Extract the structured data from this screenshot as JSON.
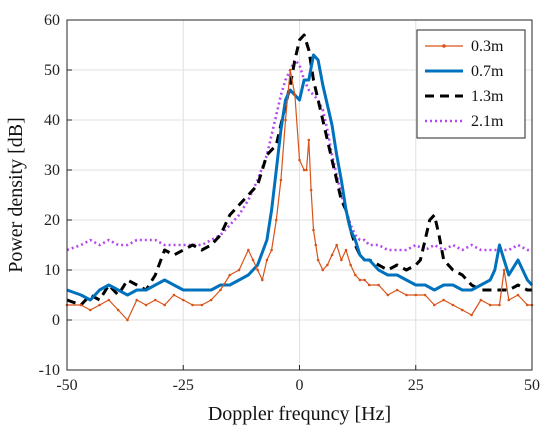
{
  "chart_data": {
    "type": "line",
    "title": "",
    "xlabel": "Doppler frequncy [Hz]",
    "ylabel": "Power density [dB]",
    "xlim": [
      -50,
      50
    ],
    "ylim": [
      -10,
      60
    ],
    "xticks": [
      -50,
      -25,
      0,
      25,
      50
    ],
    "yticks": [
      -10,
      0,
      10,
      20,
      30,
      40,
      50,
      60
    ],
    "grid": true,
    "legend_position": "top-right",
    "series": [
      {
        "name": "0.3m",
        "color": "#D95319",
        "style": "solid-dotted-markers",
        "x": [
          -50,
          -47,
          -45,
          -43,
          -41,
          -39,
          -37,
          -35,
          -33,
          -31,
          -29,
          -27,
          -25,
          -23,
          -21,
          -19,
          -17,
          -15,
          -13,
          -11,
          -10,
          -9,
          -8,
          -7,
          -6,
          -5,
          -4,
          -3,
          -2,
          -1,
          0,
          1,
          1.5,
          2,
          2.5,
          3,
          3.5,
          4,
          5,
          6,
          7,
          8,
          9,
          10,
          11,
          12,
          13,
          14,
          15,
          17,
          19,
          21,
          23,
          25,
          27,
          29,
          31,
          33,
          35,
          37,
          39,
          41,
          43,
          44,
          45,
          47,
          49,
          50
        ],
        "y": [
          3,
          3,
          2,
          3,
          4,
          2,
          0,
          4,
          3,
          4,
          3,
          5,
          4,
          3,
          3,
          4,
          6,
          9,
          10,
          14,
          12,
          10,
          8,
          12,
          14,
          20,
          28,
          40,
          50,
          45,
          32,
          30,
          30,
          36,
          26,
          18,
          15,
          12,
          10,
          11,
          13,
          15,
          12,
          14,
          11,
          9,
          8,
          8,
          7,
          7,
          5,
          6,
          5,
          5,
          5,
          3,
          4,
          3,
          2,
          1,
          4,
          3,
          3,
          10,
          4,
          5,
          3,
          3
        ]
      },
      {
        "name": "0.7m",
        "color": "#0072BD",
        "style": "solid-thick",
        "x": [
          -50,
          -47,
          -45,
          -43,
          -41,
          -39,
          -37,
          -35,
          -33,
          -31,
          -29,
          -27,
          -25,
          -23,
          -21,
          -19,
          -17,
          -15,
          -13,
          -11,
          -9,
          -7,
          -6,
          -5,
          -4,
          -3,
          -2,
          -1,
          0,
          1,
          2,
          3,
          4,
          5,
          6,
          7,
          8,
          9,
          10,
          11,
          12,
          13,
          14,
          15,
          17,
          19,
          21,
          23,
          25,
          27,
          29,
          31,
          33,
          35,
          37,
          39,
          41,
          42,
          43,
          44,
          45,
          47,
          49,
          50
        ],
        "y": [
          6,
          5,
          4,
          6,
          7,
          6,
          5,
          6,
          6,
          7,
          8,
          7,
          6,
          6,
          6,
          6,
          7,
          7,
          8,
          9,
          11,
          16,
          22,
          30,
          38,
          44,
          46,
          45,
          44,
          48,
          48,
          53,
          52,
          47,
          43,
          39,
          33,
          28,
          22,
          18,
          16,
          13,
          12,
          12,
          10,
          9,
          9,
          8,
          7,
          7,
          6,
          7,
          7,
          6,
          6,
          7,
          8,
          10,
          15,
          12,
          9,
          12,
          8,
          7
        ]
      },
      {
        "name": "1.3m",
        "color": "#000000",
        "style": "dashed",
        "x": [
          -50,
          -47,
          -45,
          -43,
          -41,
          -39,
          -37,
          -35,
          -33,
          -31,
          -29,
          -27,
          -25,
          -23,
          -21,
          -19,
          -17,
          -15,
          -13,
          -11,
          -9,
          -7,
          -6,
          -5,
          -4,
          -3,
          -2,
          -1,
          0,
          1,
          2,
          3,
          4,
          5,
          6,
          7,
          8,
          9,
          10,
          11,
          12,
          13,
          14,
          15,
          17,
          19,
          21,
          23,
          25,
          26,
          27,
          28,
          29,
          30,
          31,
          33,
          35,
          37,
          39,
          41,
          43,
          45,
          47,
          49,
          50
        ],
        "y": [
          4,
          3,
          5,
          4,
          7,
          5,
          8,
          7,
          6,
          9,
          14,
          13,
          14,
          15,
          14,
          15,
          17,
          21,
          23,
          25,
          27,
          33,
          34,
          35,
          39,
          43,
          47,
          52,
          56,
          57,
          54,
          48,
          44,
          40,
          36,
          32,
          28,
          24,
          22,
          18,
          15,
          13,
          12,
          12,
          11,
          10,
          11,
          10,
          11,
          12,
          16,
          20,
          21,
          17,
          12,
          10,
          9,
          7,
          6,
          6,
          6,
          6,
          7,
          6,
          6
        ]
      },
      {
        "name": "2.1m",
        "color": "#B448F2",
        "style": "dotted",
        "x": [
          -50,
          -47,
          -45,
          -43,
          -41,
          -39,
          -37,
          -35,
          -33,
          -31,
          -29,
          -27,
          -25,
          -23,
          -21,
          -19,
          -17,
          -15,
          -13,
          -11,
          -9,
          -7,
          -6,
          -5,
          -4,
          -3,
          -2,
          -1,
          0,
          1,
          2,
          3,
          4,
          5,
          6,
          7,
          8,
          9,
          10,
          11,
          12,
          13,
          14,
          15,
          17,
          19,
          21,
          23,
          25,
          27,
          29,
          31,
          33,
          35,
          37,
          39,
          41,
          43,
          45,
          47,
          49,
          50
        ],
        "y": [
          14,
          15,
          16,
          15,
          16,
          15,
          15,
          16,
          16,
          16,
          15,
          15,
          15,
          15,
          15,
          16,
          17,
          19,
          21,
          24,
          28,
          33,
          37,
          41,
          45,
          48,
          50,
          52,
          51,
          48,
          46,
          45,
          44,
          42,
          38,
          33,
          29,
          25,
          22,
          19,
          17,
          16,
          16,
          15,
          15,
          14,
          14,
          14,
          15,
          14,
          15,
          14,
          15,
          14,
          15,
          14,
          14,
          14,
          14,
          15,
          14,
          14
        ]
      }
    ]
  }
}
